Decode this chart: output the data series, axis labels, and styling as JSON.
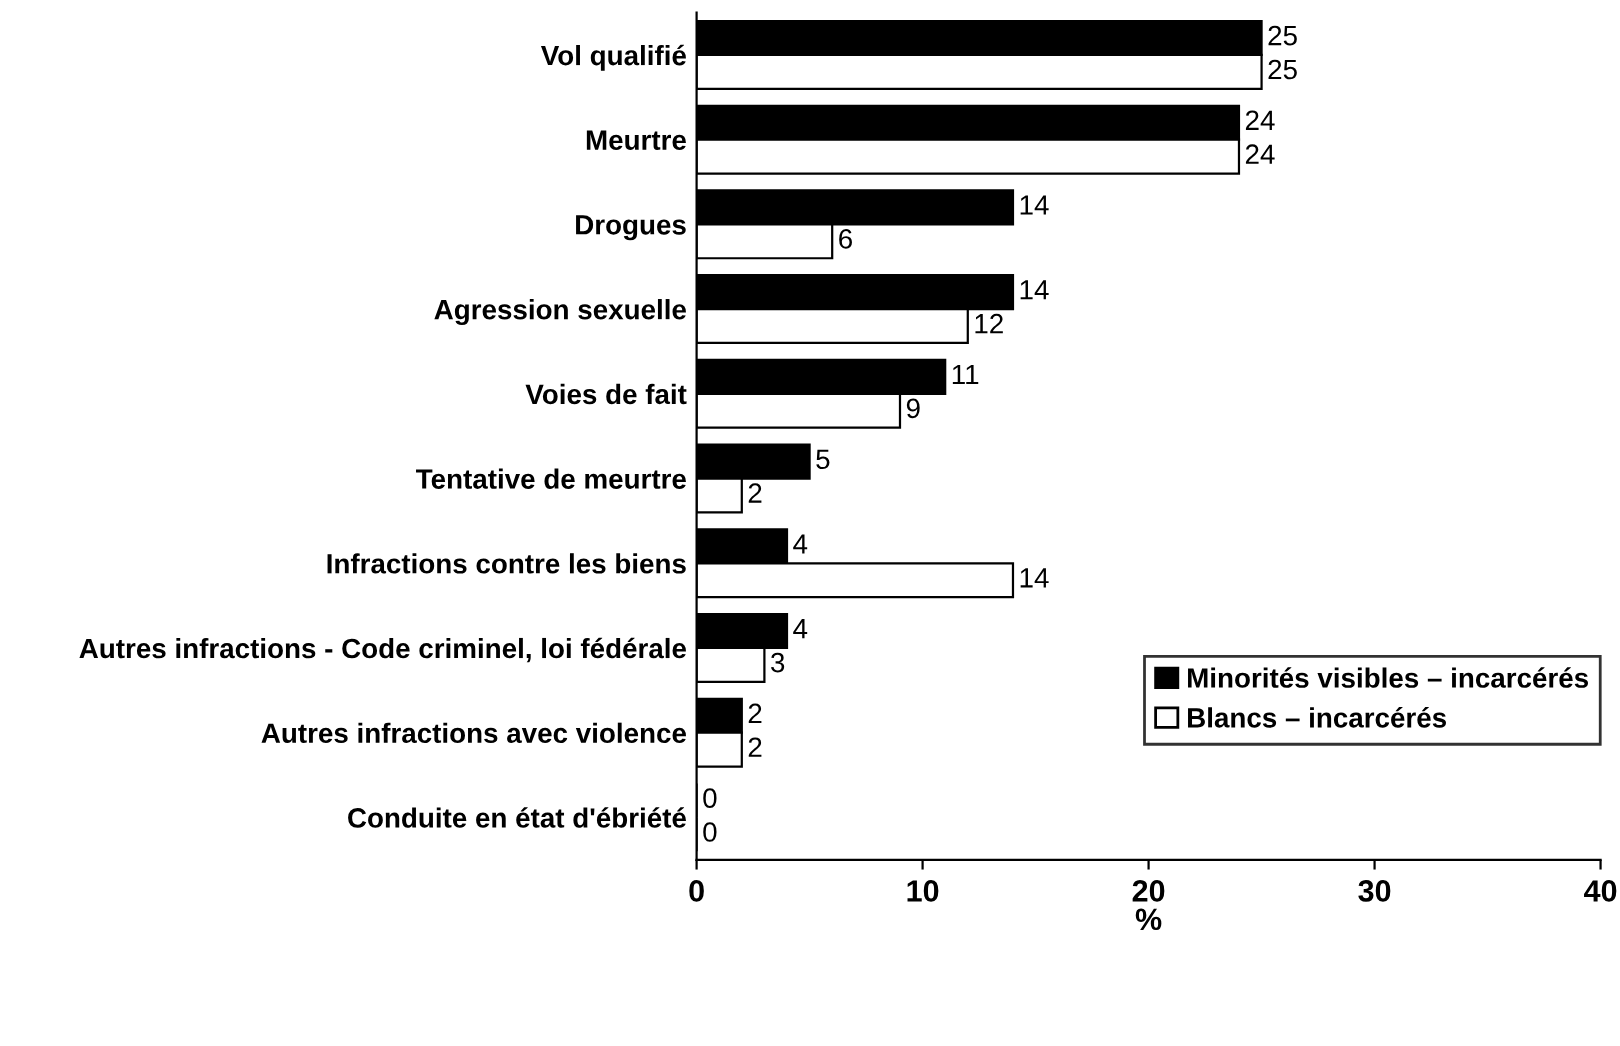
{
  "chart_data": {
    "type": "bar",
    "orientation": "horizontal",
    "xlabel": "%",
    "categories": [
      "Vol qualifié",
      "Meurtre",
      "Drogues",
      "Agression sexuelle",
      "Voies de fait",
      "Tentative de meurtre",
      "Infractions contre les biens",
      "Autres infractions - Code criminel, loi fédérale",
      "Autres infractions avec violence",
      "Conduite en état d'ébriété"
    ],
    "series": [
      {
        "name": "Minorités visibles – incarcérés",
        "color": "#000000",
        "values": [
          25,
          24,
          14,
          14,
          11,
          5,
          4,
          4,
          2,
          0
        ]
      },
      {
        "name": "Blancs – incarcérés",
        "color": "#ffffff",
        "values": [
          25,
          24,
          6,
          12,
          9,
          2,
          14,
          3,
          2,
          0
        ]
      }
    ],
    "xlim": [
      0,
      40
    ],
    "xticks": [
      0,
      10,
      20,
      30,
      40
    ],
    "data_labels": true,
    "grid": false,
    "legend": "bottom right"
  }
}
